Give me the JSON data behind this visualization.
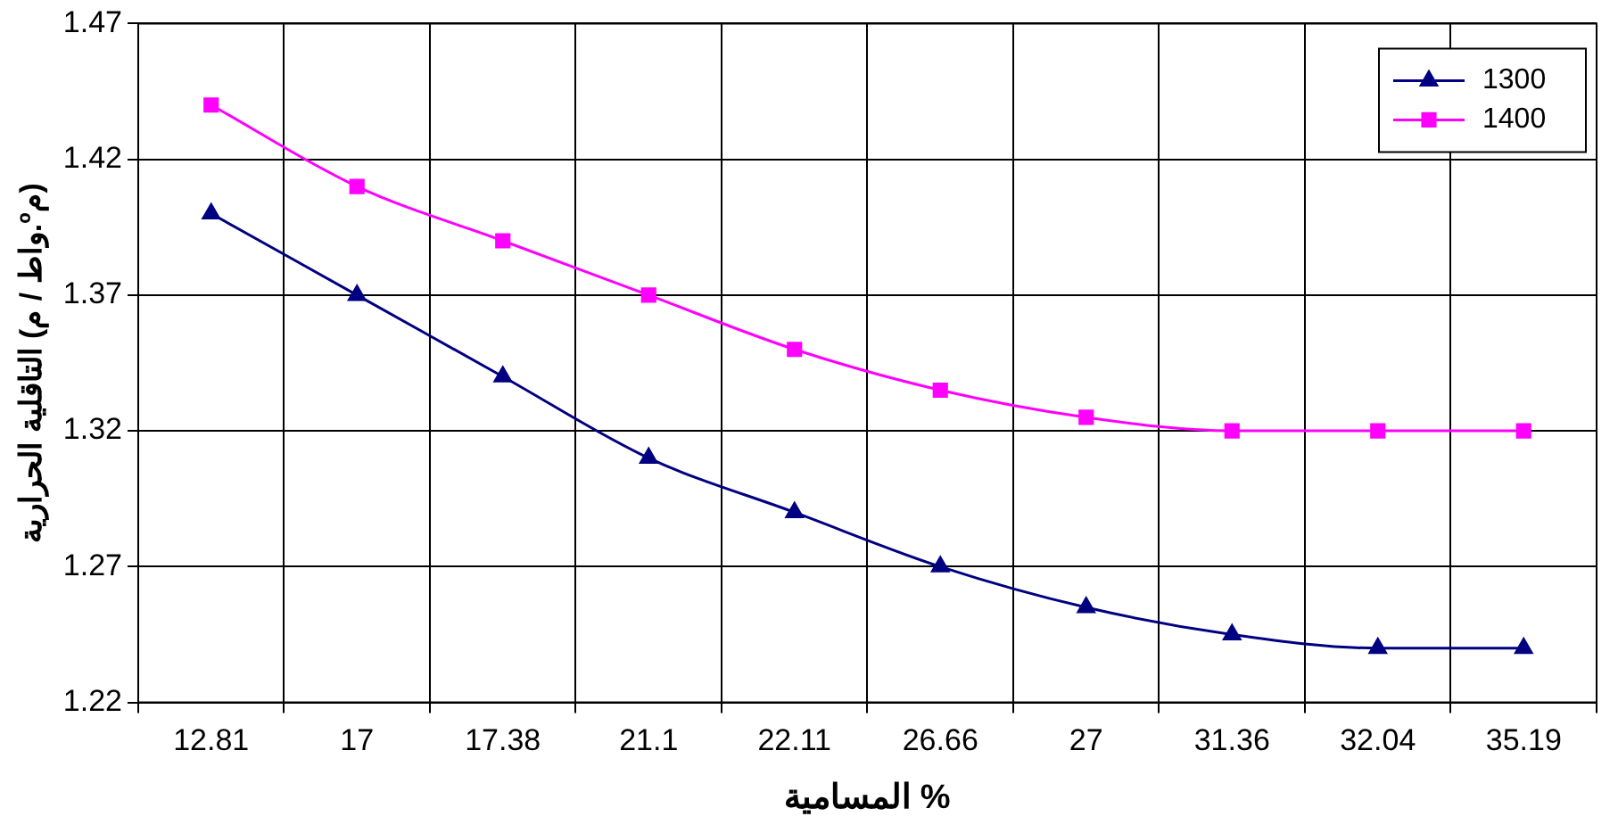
{
  "chart_data": {
    "type": "line",
    "xlabel": "المسامية %",
    "ylabel": "التاقلية الحرارية (واط / م.ºم)",
    "categories": [
      "12.81",
      "17",
      "17.38",
      "21.1",
      "22.11",
      "26.66",
      "27",
      "31.36",
      "32.04",
      "35.19"
    ],
    "series": [
      {
        "name": "1300",
        "color": "#000080",
        "marker": "triangle",
        "values": [
          1.4,
          1.37,
          1.34,
          1.31,
          1.29,
          1.27,
          1.255,
          1.245,
          1.24,
          1.24
        ]
      },
      {
        "name": "1400",
        "color": "#ff00ff",
        "marker": "square",
        "values": [
          1.44,
          1.41,
          1.39,
          1.37,
          1.35,
          1.335,
          1.325,
          1.32,
          1.32,
          1.32
        ]
      }
    ],
    "ylim": [
      1.22,
      1.47
    ],
    "yticks": [
      1.22,
      1.27,
      1.32,
      1.37,
      1.42,
      1.47
    ],
    "grid": true,
    "legend": "top right",
    "line_style": "solid"
  }
}
